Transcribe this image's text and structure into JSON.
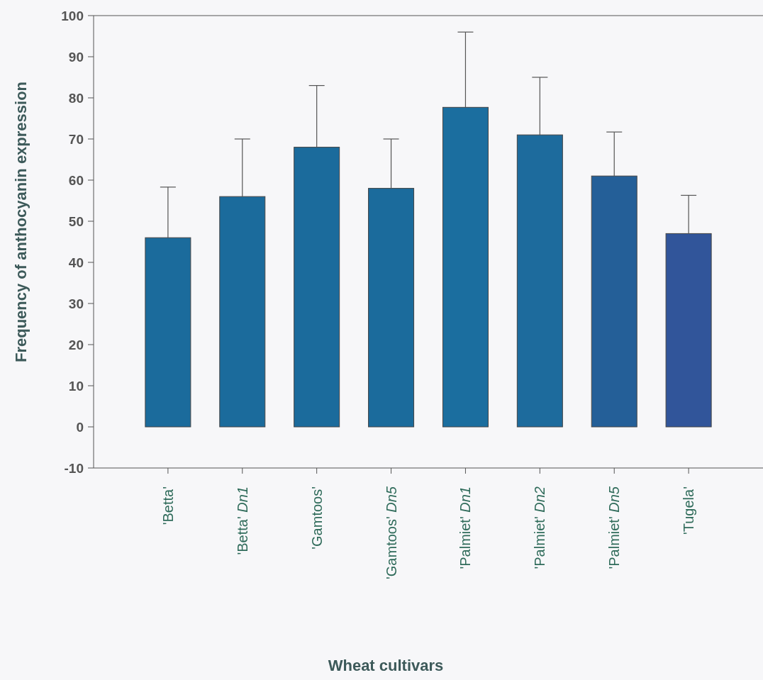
{
  "chart_data": {
    "type": "bar",
    "xlabel": "Wheat cultivars",
    "ylabel": "Frequency of anthocyanin expression",
    "categories": [
      "'Betta'",
      "'Betta' Dn1",
      "'Gamtoos'",
      "'Gamtoos' Dn5",
      "'Palmiet' Dn1",
      "'Palmiet' Dn2",
      "'Palmiet' Dn5",
      "'Tugela'"
    ],
    "values": [
      46,
      56,
      68,
      58,
      77.7,
      71,
      61,
      47
    ],
    "errors": [
      [
        46,
        58.3
      ],
      [
        56,
        70
      ],
      [
        68,
        83
      ],
      [
        58,
        70
      ],
      [
        77.7,
        96
      ],
      [
        71,
        85
      ],
      [
        61,
        71.7
      ],
      [
        47,
        56.3
      ]
    ],
    "colors": [
      "#1b6b9c",
      "#1b6b9c",
      "#1b6b9c",
      "#1b6b9c",
      "#1b6e9f",
      "#1d6b9d",
      "#245f98",
      "#31559a"
    ],
    "ylim": [
      -10,
      100
    ],
    "yticks": [
      -10,
      0,
      10,
      20,
      30,
      40,
      50,
      60,
      70,
      80,
      90,
      100
    ]
  }
}
